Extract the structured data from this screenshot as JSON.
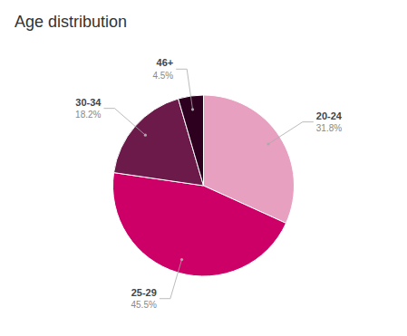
{
  "chart_data": {
    "type": "pie",
    "title": "Age distribution",
    "categories": [
      "20-24",
      "25-29",
      "30-34",
      "46+"
    ],
    "values": [
      31.8,
      45.5,
      18.2,
      4.5
    ],
    "value_labels": [
      "31.8%",
      "45.5%",
      "18.2%",
      "4.5%"
    ],
    "colors": [
      "#e8a0c0",
      "#cc0066",
      "#6b1a4a",
      "#2d0020"
    ],
    "data_labels": true
  }
}
